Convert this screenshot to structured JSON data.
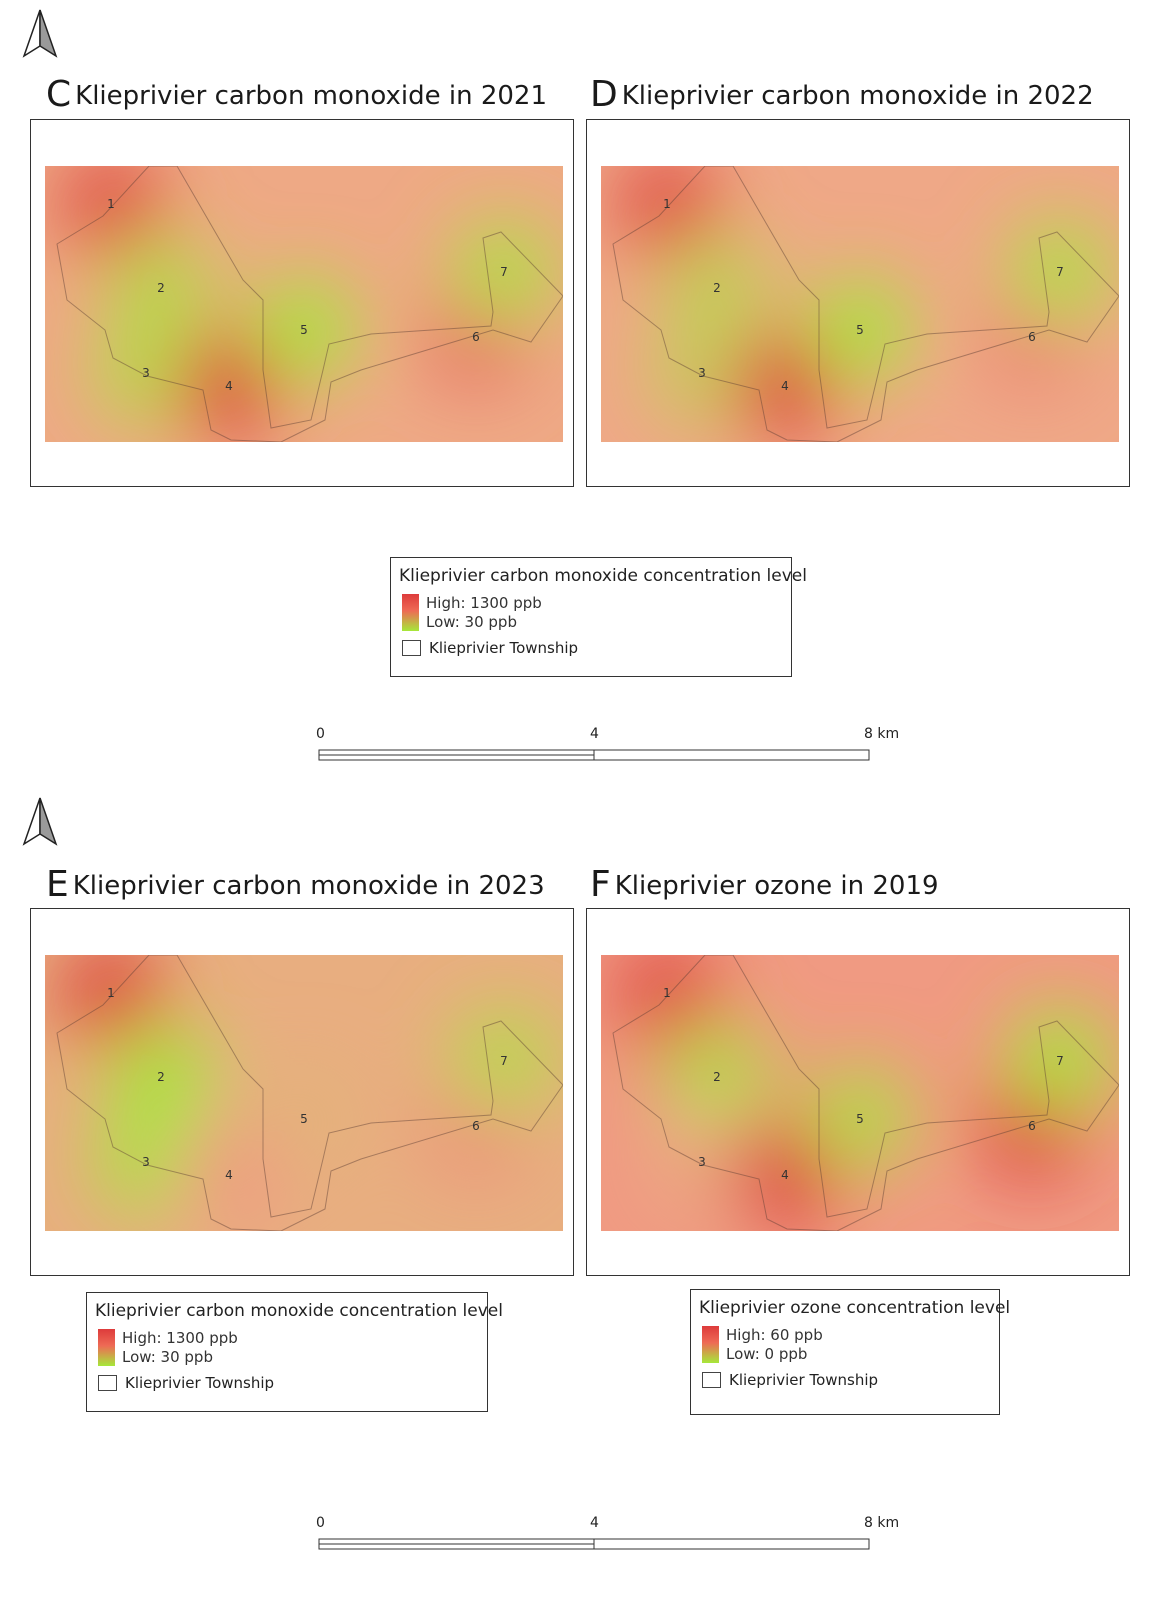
{
  "section_top": {
    "north_icon": "north-arrow-icon",
    "panels": [
      {
        "letter": "C",
        "title": "Klieprivier carbon monoxide in 2021",
        "hotspots": [
          {
            "id": "1",
            "level": 0.95
          },
          {
            "id": "2",
            "level": 0.1
          },
          {
            "id": "3",
            "level": 0.1
          },
          {
            "id": "4",
            "level": 1.0
          },
          {
            "id": "5",
            "level": 0.0
          },
          {
            "id": "6",
            "level": 0.75
          },
          {
            "id": "7",
            "level": 0.05
          }
        ]
      },
      {
        "letter": "D",
        "title": "Klieprivier carbon monoxide in 2022",
        "hotspots": [
          {
            "id": "1",
            "level": 0.95
          },
          {
            "id": "2",
            "level": 0.15
          },
          {
            "id": "3",
            "level": 0.2
          },
          {
            "id": "4",
            "level": 1.0
          },
          {
            "id": "5",
            "level": 0.0
          },
          {
            "id": "6",
            "level": 0.65
          },
          {
            "id": "7",
            "level": 0.05
          }
        ]
      }
    ],
    "legend": {
      "title": "Klieprivier carbon monoxide concentration level",
      "high": "High: 1300 ppb",
      "low": "Low: 30 ppb",
      "polygon": "Klieprivier Township"
    },
    "scalebar": {
      "labels": [
        "0",
        "4",
        "8 km"
      ]
    }
  },
  "section_bottom": {
    "north_icon": "north-arrow-icon",
    "panels": [
      {
        "letter": "E",
        "title": "Klieprivier carbon monoxide in 2023",
        "hotspots": [
          {
            "id": "1",
            "level": 1.0
          },
          {
            "id": "2",
            "level": 0.0
          },
          {
            "id": "3",
            "level": 0.05
          },
          {
            "id": "4",
            "level": 0.55
          },
          {
            "id": "5",
            "level": 0.4
          },
          {
            "id": "6",
            "level": 0.6
          },
          {
            "id": "7",
            "level": 0.1
          }
        ]
      },
      {
        "letter": "F",
        "title": "Klieprivier ozone in 2019",
        "hotspots": [
          {
            "id": "1",
            "level": 0.95
          },
          {
            "id": "2",
            "level": 0.05
          },
          {
            "id": "3",
            "level": 0.45
          },
          {
            "id": "4",
            "level": 1.0
          },
          {
            "id": "5",
            "level": 0.05
          },
          {
            "id": "6",
            "level": 1.0
          },
          {
            "id": "7",
            "level": 0.0
          }
        ]
      }
    ],
    "legends": [
      {
        "title": "Klieprivier carbon monoxide concentration level",
        "high": "High: 1300 ppb",
        "low": "Low: 30 ppb",
        "polygon": "Klieprivier Township"
      },
      {
        "title": "Klieprivier ozone concentration level",
        "high": "High: 60 ppb",
        "low": "Low: 0 ppb",
        "polygon": "Klieprivier Township"
      }
    ],
    "scalebar": {
      "labels": [
        "0",
        "4",
        "8 km"
      ]
    }
  },
  "colors": {
    "high": "#dd3b3b",
    "mid": "#f2a58a",
    "low": "#a6e83a",
    "neutral": "#e2b070"
  }
}
